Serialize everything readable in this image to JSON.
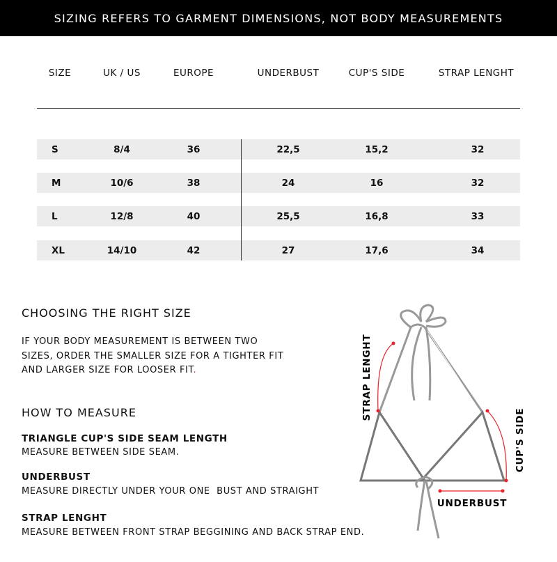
{
  "banner": "SIZING REFERS TO GARMENT DIMENSIONS, NOT BODY MEASUREMENTS",
  "table": {
    "headers": [
      "SIZE",
      "UK / US",
      "EUROPE",
      "UNDERBUST",
      "CUP'S SIDE",
      "STRAP LENGHT"
    ],
    "rows": [
      [
        "S",
        "8/4",
        "36",
        "22,5",
        "15,2",
        "32"
      ],
      [
        "M",
        "10/6",
        "38",
        "24",
        "16",
        "32"
      ],
      [
        "L",
        "12/8",
        "40",
        "25,5",
        "16,8",
        "33"
      ],
      [
        "XL",
        "14/10",
        "42",
        "27",
        "17,6",
        "34"
      ]
    ]
  },
  "choosing": {
    "title": "CHOOSING THE RIGHT SIZE",
    "lines": [
      "IF YOUR BODY MEASUREMENT IS BETWEEN TWO",
      "SIZES, ORDER THE SMALLER SIZE FOR A TIGHTER FIT",
      "AND LARGER SIZE FOR LOOSER FIT"
    ],
    "period": "."
  },
  "how": {
    "title": "HOW TO MEASURE",
    "items": [
      {
        "title": "TRIANGLE CUP'S SIDE SEAM LENGTH",
        "text": "MEASURE BETWEEN SIDE SEAM."
      },
      {
        "title": "UNDERBUST",
        "text": "MEASURE DIRECTLY UNDER YOUR ONE  BUST AND STRAIGHT"
      },
      {
        "title": "STRAP LENGHT",
        "text": "MEASURE BETWEEN FRONT STRAP BEGGINING AND BACK STRAP END."
      }
    ]
  },
  "diagram": {
    "strap_label": "STRAP LENGHT",
    "cup_label": "CUP'S SIDE",
    "underbust_label": "UNDERBUST",
    "accent": "#e8212a"
  }
}
